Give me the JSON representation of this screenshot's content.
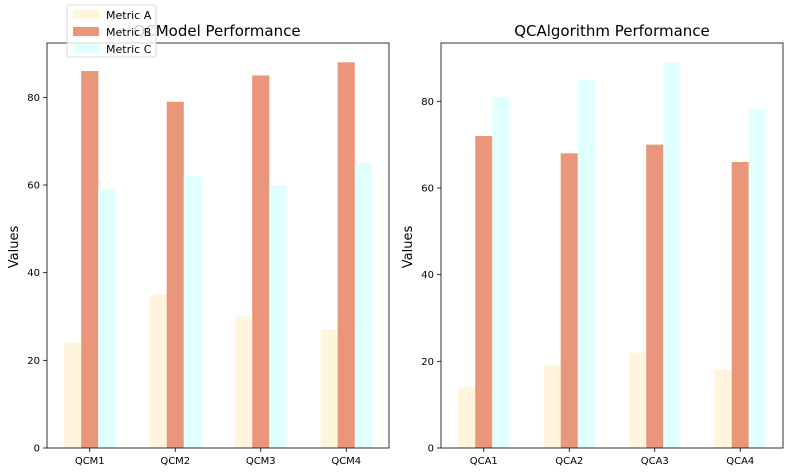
{
  "chart_data": [
    {
      "type": "bar",
      "title": "QCModel Performance",
      "xlabel": "",
      "ylabel": "Values",
      "categories": [
        "QCM1",
        "QCM2",
        "QCM3",
        "QCM4"
      ],
      "series": [
        {
          "name": "Metric A",
          "values": [
            24,
            35,
            30,
            27
          ],
          "color": "#fff5dc"
        },
        {
          "name": "Metric B",
          "values": [
            86,
            79,
            85,
            88
          ],
          "color": "#e9967a"
        },
        {
          "name": "Metric C",
          "values": [
            59,
            62,
            60,
            65
          ],
          "color": "#e0ffff"
        }
      ],
      "ylim": [
        0,
        92.4
      ],
      "yticks": [
        0,
        20,
        40,
        60,
        80
      ],
      "legend": "upper-left",
      "grid": false
    },
    {
      "type": "bar",
      "title": "QCAlgorithm Performance",
      "xlabel": "",
      "ylabel": "Values",
      "categories": [
        "QCA1",
        "QCA2",
        "QCA3",
        "QCA4"
      ],
      "series": [
        {
          "name": "Metric A",
          "values": [
            14,
            19,
            22,
            18
          ],
          "color": "#fff5dc"
        },
        {
          "name": "Metric B",
          "values": [
            72,
            68,
            70,
            66
          ],
          "color": "#e9967a"
        },
        {
          "name": "Metric C",
          "values": [
            81,
            85,
            89,
            78
          ],
          "color": "#e0ffff"
        }
      ],
      "ylim": [
        0,
        93.45
      ],
      "yticks": [
        0,
        20,
        40,
        60,
        80
      ],
      "grid": false
    }
  ]
}
